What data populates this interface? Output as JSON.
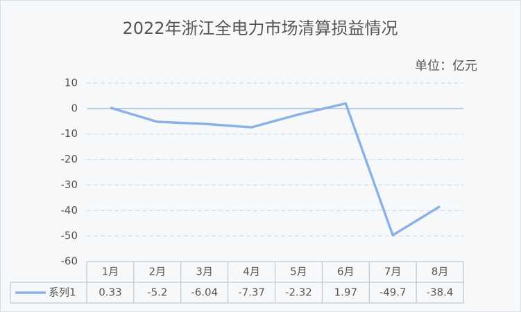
{
  "chart_data": {
    "type": "line",
    "title": "2022年浙江全电力市场清算损益情况",
    "unit_note": "单位：亿元",
    "categories": [
      "1月",
      "2月",
      "3月",
      "4月",
      "5月",
      "6月",
      "7月",
      "8月"
    ],
    "series": [
      {
        "name": "系列1",
        "color": "#8cb1e6",
        "values": [
          0.33,
          -5.2,
          -6.04,
          -7.37,
          -2.32,
          1.97,
          -49.7,
          -38.4
        ]
      }
    ],
    "ylim": [
      -60,
      10
    ],
    "yticks": [
      -60,
      -50,
      -40,
      -30,
      -20,
      -10,
      0,
      10
    ],
    "grid": true,
    "data_table": true
  }
}
